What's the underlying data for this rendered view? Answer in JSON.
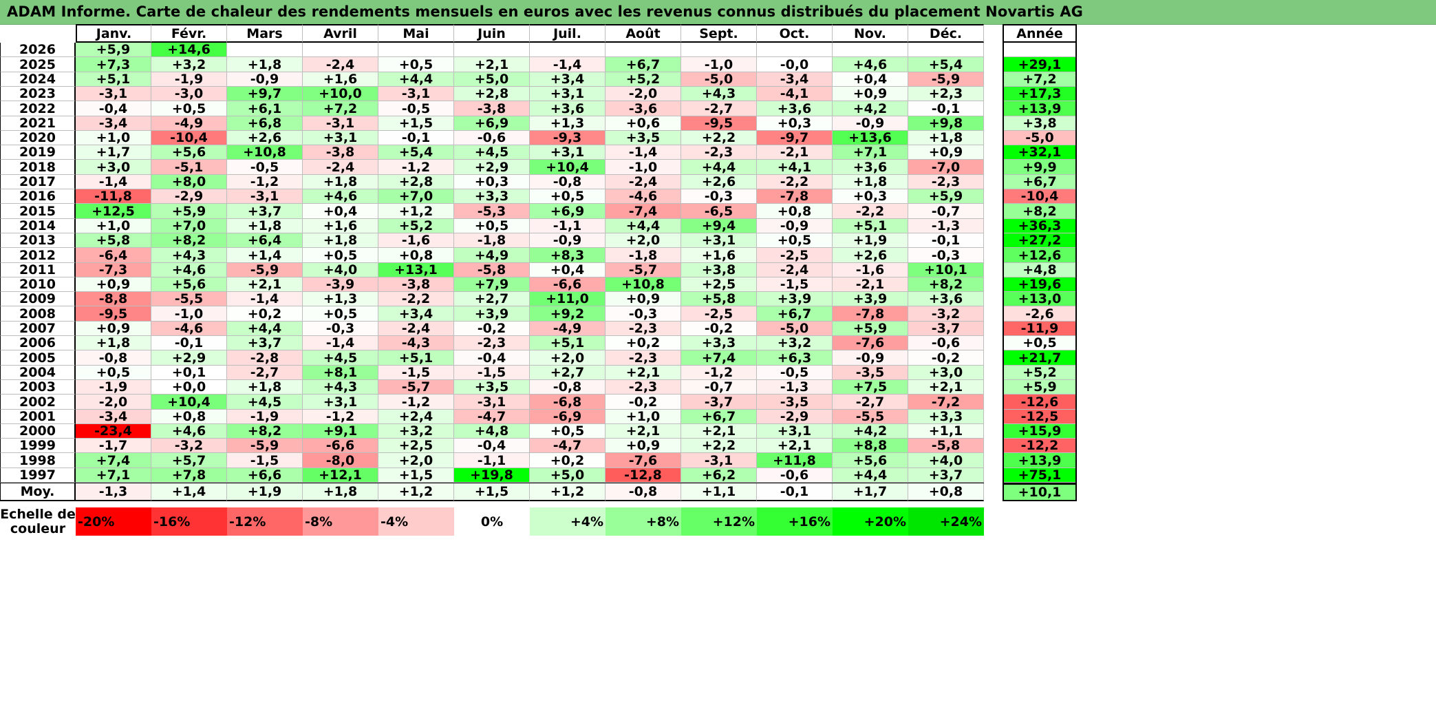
{
  "title": "ADAM Informe. Carte de chaleur des rendements mensuels en euros avec les revenus connus distribués du placement Novartis AG",
  "chart_data": {
    "type": "heatmap",
    "months": [
      "Janv.",
      "Févr.",
      "Mars",
      "Avril",
      "Mai",
      "Juin",
      "Juil.",
      "Août",
      "Sept.",
      "Oct.",
      "Nov.",
      "Déc."
    ],
    "year_header": "Année",
    "avg_label": "Moy.",
    "rows": [
      {
        "year": "2026",
        "months": [
          "+5,9",
          "+14,6",
          "",
          "",
          "",
          "",
          "",
          "",
          "",
          "",
          "",
          ""
        ],
        "annual": ""
      },
      {
        "year": "2025",
        "months": [
          "+7,3",
          "+3,2",
          "+1,8",
          "-2,4",
          "+0,5",
          "+2,1",
          "-1,4",
          "+6,7",
          "-1,0",
          "-0,0",
          "+4,6",
          "+5,4"
        ],
        "annual": "+29,1"
      },
      {
        "year": "2024",
        "months": [
          "+5,1",
          "-1,9",
          "-0,9",
          "+1,6",
          "+4,4",
          "+5,0",
          "+3,4",
          "+5,2",
          "-5,0",
          "-3,4",
          "+0,4",
          "-5,9"
        ],
        "annual": "+7,2"
      },
      {
        "year": "2023",
        "months": [
          "-3,1",
          "-3,0",
          "+9,7",
          "+10,0",
          "-3,1",
          "+2,8",
          "+3,1",
          "-2,0",
          "+4,3",
          "-4,1",
          "+0,9",
          "+2,3"
        ],
        "annual": "+17,3"
      },
      {
        "year": "2022",
        "months": [
          "-0,4",
          "+0,5",
          "+6,1",
          "+7,2",
          "-0,5",
          "-3,8",
          "+3,6",
          "-3,6",
          "-2,7",
          "+3,6",
          "+4,2",
          "-0,1"
        ],
        "annual": "+13,9"
      },
      {
        "year": "2021",
        "months": [
          "-3,4",
          "-4,9",
          "+6,8",
          "-3,1",
          "+1,5",
          "+6,9",
          "+1,3",
          "+0,6",
          "-9,5",
          "+0,3",
          "-0,9",
          "+9,8"
        ],
        "annual": "+3,8"
      },
      {
        "year": "2020",
        "months": [
          "+1,0",
          "-10,4",
          "+2,6",
          "+3,1",
          "-0,1",
          "-0,6",
          "-9,3",
          "+3,5",
          "+2,2",
          "-9,7",
          "+13,6",
          "+1,8"
        ],
        "annual": "-5,0"
      },
      {
        "year": "2019",
        "months": [
          "+1,7",
          "+5,6",
          "+10,8",
          "-3,8",
          "+5,4",
          "+4,5",
          "+3,1",
          "-1,4",
          "-2,3",
          "-2,1",
          "+7,1",
          "+0,9"
        ],
        "annual": "+32,1"
      },
      {
        "year": "2018",
        "months": [
          "+3,0",
          "-5,1",
          "-0,5",
          "-2,4",
          "-1,2",
          "+2,9",
          "+10,4",
          "-1,0",
          "+4,4",
          "+4,1",
          "+3,6",
          "-7,0"
        ],
        "annual": "+9,9"
      },
      {
        "year": "2017",
        "months": [
          "-1,4",
          "+8,0",
          "-1,2",
          "+1,8",
          "+2,8",
          "+0,3",
          "-0,8",
          "-2,4",
          "+2,6",
          "-2,2",
          "+1,8",
          "-2,3"
        ],
        "annual": "+6,7"
      },
      {
        "year": "2016",
        "months": [
          "-11,8",
          "-2,9",
          "-3,1",
          "+4,6",
          "+7,0",
          "+3,3",
          "+0,5",
          "-4,6",
          "-0,3",
          "-7,8",
          "+0,3",
          "+5,9"
        ],
        "annual": "-10,4"
      },
      {
        "year": "2015",
        "months": [
          "+12,5",
          "+5,9",
          "+3,7",
          "+0,4",
          "+1,2",
          "-5,3",
          "+6,9",
          "-7,4",
          "-6,5",
          "+0,8",
          "-2,2",
          "-0,7"
        ],
        "annual": "+8,2"
      },
      {
        "year": "2014",
        "months": [
          "+1,0",
          "+7,0",
          "+1,8",
          "+1,6",
          "+5,2",
          "+0,5",
          "-1,1",
          "+4,4",
          "+9,4",
          "-0,9",
          "+5,1",
          "-1,3"
        ],
        "annual": "+36,3"
      },
      {
        "year": "2013",
        "months": [
          "+5,8",
          "+8,2",
          "+6,4",
          "+1,8",
          "-1,6",
          "-1,8",
          "-0,9",
          "+2,0",
          "+3,1",
          "+0,5",
          "+1,9",
          "-0,1"
        ],
        "annual": "+27,2"
      },
      {
        "year": "2012",
        "months": [
          "-6,4",
          "+4,3",
          "+1,4",
          "+0,5",
          "+0,8",
          "+4,9",
          "+8,3",
          "-1,8",
          "+1,6",
          "-2,5",
          "+2,6",
          "-0,3"
        ],
        "annual": "+12,6"
      },
      {
        "year": "2011",
        "months": [
          "-7,3",
          "+4,6",
          "-5,9",
          "+4,0",
          "+13,1",
          "-5,8",
          "+0,4",
          "-5,7",
          "+3,8",
          "-2,4",
          "-1,6",
          "+10,1"
        ],
        "annual": "+4,8"
      },
      {
        "year": "2010",
        "months": [
          "+0,9",
          "+5,6",
          "+2,1",
          "-3,9",
          "-3,8",
          "+7,9",
          "-6,6",
          "+10,8",
          "+2,5",
          "-1,5",
          "-2,1",
          "+8,2"
        ],
        "annual": "+19,6"
      },
      {
        "year": "2009",
        "months": [
          "-8,8",
          "-5,5",
          "-1,4",
          "+1,3",
          "-2,2",
          "+2,7",
          "+11,0",
          "+0,9",
          "+5,8",
          "+3,9",
          "+3,9",
          "+3,6"
        ],
        "annual": "+13,0"
      },
      {
        "year": "2008",
        "months": [
          "-9,5",
          "-1,0",
          "+0,2",
          "+0,5",
          "+3,4",
          "+3,9",
          "+9,2",
          "-0,3",
          "-2,5",
          "+6,7",
          "-7,8",
          "-3,2"
        ],
        "annual": "-2,6"
      },
      {
        "year": "2007",
        "months": [
          "+0,9",
          "-4,6",
          "+4,4",
          "-0,3",
          "-2,4",
          "-0,2",
          "-4,9",
          "-2,3",
          "-0,2",
          "-5,0",
          "+5,9",
          "-3,7"
        ],
        "annual": "-11,9"
      },
      {
        "year": "2006",
        "months": [
          "+1,8",
          "-0,1",
          "+3,7",
          "-1,4",
          "-4,3",
          "-2,3",
          "+5,1",
          "+0,2",
          "+3,3",
          "+3,2",
          "-7,6",
          "-0,6"
        ],
        "annual": "+0,5"
      },
      {
        "year": "2005",
        "months": [
          "-0,8",
          "+2,9",
          "-2,8",
          "+4,5",
          "+5,1",
          "-0,4",
          "+2,0",
          "-2,3",
          "+7,4",
          "+6,3",
          "-0,9",
          "-0,2"
        ],
        "annual": "+21,7"
      },
      {
        "year": "2004",
        "months": [
          "+0,5",
          "+0,1",
          "-2,7",
          "+8,1",
          "-1,5",
          "-1,5",
          "+2,7",
          "+2,1",
          "-1,2",
          "-0,5",
          "-3,5",
          "+3,0"
        ],
        "annual": "+5,2"
      },
      {
        "year": "2003",
        "months": [
          "-1,9",
          "+0,0",
          "+1,8",
          "+4,3",
          "-5,7",
          "+3,5",
          "-0,8",
          "-2,3",
          "-0,7",
          "-1,3",
          "+7,5",
          "+2,1"
        ],
        "annual": "+5,9"
      },
      {
        "year": "2002",
        "months": [
          "-2,0",
          "+10,4",
          "+4,5",
          "+3,1",
          "-1,2",
          "-3,1",
          "-6,8",
          "-0,2",
          "-3,7",
          "-3,5",
          "-2,7",
          "-7,2"
        ],
        "annual": "-12,6"
      },
      {
        "year": "2001",
        "months": [
          "-3,4",
          "+0,8",
          "-1,9",
          "-1,2",
          "+2,4",
          "-4,7",
          "-6,9",
          "+1,0",
          "+6,7",
          "-2,9",
          "-5,5",
          "+3,3"
        ],
        "annual": "-12,5"
      },
      {
        "year": "2000",
        "months": [
          "-23,4",
          "+4,6",
          "+8,2",
          "+9,1",
          "+3,2",
          "+4,8",
          "+0,5",
          "+2,1",
          "+2,1",
          "+3,1",
          "+4,2",
          "+1,1"
        ],
        "annual": "+15,9"
      },
      {
        "year": "1999",
        "months": [
          "-1,7",
          "-3,2",
          "-5,9",
          "-6,6",
          "+2,5",
          "-0,4",
          "-4,7",
          "+0,9",
          "+2,2",
          "+2,1",
          "+8,8",
          "-5,8"
        ],
        "annual": "-12,2"
      },
      {
        "year": "1998",
        "months": [
          "+7,4",
          "+5,7",
          "-1,5",
          "-8,0",
          "+2,0",
          "-1,1",
          "+0,2",
          "-7,6",
          "-3,1",
          "+11,8",
          "+5,6",
          "+4,0"
        ],
        "annual": "+13,9"
      },
      {
        "year": "1997",
        "months": [
          "+7,1",
          "+7,8",
          "+6,6",
          "+12,1",
          "+1,5",
          "+19,8",
          "+5,0",
          "-12,8",
          "+6,2",
          "-0,6",
          "+4,4",
          "+3,7"
        ],
        "annual": "+75,1"
      }
    ],
    "averages": {
      "months": [
        "-1,3",
        "+1,4",
        "+1,9",
        "+1,8",
        "+1,2",
        "+1,5",
        "+1,2",
        "-0,8",
        "+1,1",
        "-0,1",
        "+1,7",
        "+0,8"
      ],
      "annual": "+10,1"
    },
    "color_scale": {
      "label_line1": "Echelle de",
      "label_line2": "couleur",
      "steps": [
        {
          "label": "-20%",
          "value": -20,
          "color": "#ff0000"
        },
        {
          "label": "-16%",
          "value": -16,
          "color": "#ff3333"
        },
        {
          "label": "-12%",
          "value": -12,
          "color": "#ff6666"
        },
        {
          "label": "-8%",
          "value": -8,
          "color": "#ff9999"
        },
        {
          "label": "-4%",
          "value": -4,
          "color": "#ffcccc"
        },
        {
          "label": "0%",
          "value": 0,
          "color": "#ffffff"
        },
        {
          "label": "+4%",
          "value": 4,
          "color": "#ccffcc"
        },
        {
          "label": "+8%",
          "value": 8,
          "color": "#99ff99"
        },
        {
          "label": "+12%",
          "value": 12,
          "color": "#66ff66"
        },
        {
          "label": "+16%",
          "value": 16,
          "color": "#33ff33"
        },
        {
          "label": "+20%",
          "value": 20,
          "color": "#00ff00"
        },
        {
          "label": "+24%",
          "value": 24,
          "color": "#00e600"
        }
      ]
    }
  }
}
